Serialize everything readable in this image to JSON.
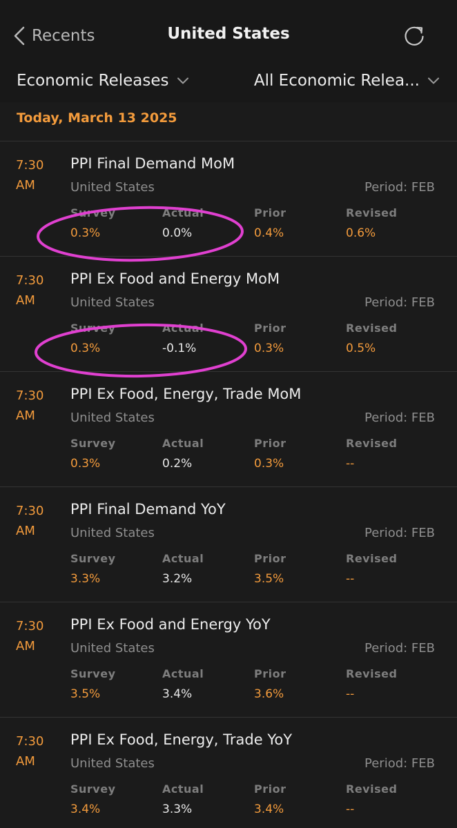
{
  "header": {
    "back_label": "Recents",
    "title": "United States"
  },
  "filters": {
    "category": "Economic Releases",
    "subcategory": "All Economic Relea..."
  },
  "date_header": "Today, March 13 2025",
  "stat_labels": {
    "survey": "Survey",
    "actual": "Actual",
    "prior": "Prior",
    "revised": "Revised"
  },
  "releases": [
    {
      "time_hour": "7:30",
      "time_ampm": "AM",
      "name": "PPI Final Demand MoM",
      "country": "United States",
      "period": "Period: FEB",
      "survey": "0.3%",
      "actual": "0.0%",
      "prior": "0.4%",
      "revised": "0.6%",
      "highlighted": true
    },
    {
      "time_hour": "7:30",
      "time_ampm": "AM",
      "name": "PPI Ex Food and Energy MoM",
      "country": "United States",
      "period": "Period: FEB",
      "survey": "0.3%",
      "actual": "-0.1%",
      "prior": "0.3%",
      "revised": "0.5%",
      "highlighted": true
    },
    {
      "time_hour": "7:30",
      "time_ampm": "AM",
      "name": "PPI Ex Food, Energy, Trade MoM",
      "country": "United States",
      "period": "Period: FEB",
      "survey": "0.3%",
      "actual": "0.2%",
      "prior": "0.3%",
      "revised": "--",
      "highlighted": false
    },
    {
      "time_hour": "7:30",
      "time_ampm": "AM",
      "name": "PPI Final Demand YoY",
      "country": "United States",
      "period": "Period: FEB",
      "survey": "3.3%",
      "actual": "3.2%",
      "prior": "3.5%",
      "revised": "--",
      "highlighted": false
    },
    {
      "time_hour": "7:30",
      "time_ampm": "AM",
      "name": "PPI Ex Food and Energy YoY",
      "country": "United States",
      "period": "Period: FEB",
      "survey": "3.5%",
      "actual": "3.4%",
      "prior": "3.6%",
      "revised": "--",
      "highlighted": false
    },
    {
      "time_hour": "7:30",
      "time_ampm": "AM",
      "name": "PPI Ex Food, Energy, Trade YoY",
      "country": "United States",
      "period": "Period: FEB",
      "survey": "3.4%",
      "actual": "3.3%",
      "prior": "3.4%",
      "revised": "--",
      "highlighted": false
    }
  ],
  "colors": {
    "accent": "#f39b3c",
    "annotation": "#e040d0",
    "background": "#1b1b1b"
  },
  "icons": {
    "back": "chevron-left-icon",
    "refresh": "refresh-icon",
    "dropdown": "chevron-down-icon"
  }
}
